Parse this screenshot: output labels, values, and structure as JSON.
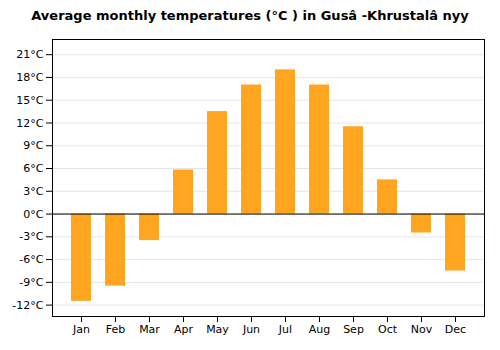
{
  "chart_data": {
    "type": "bar",
    "title": "Average monthly temperatures (°C ) in Gusâ -Khrustalâ nyy",
    "categories": [
      "Jan",
      "Feb",
      "Mar",
      "Apr",
      "May",
      "Jun",
      "Jul",
      "Aug",
      "Sep",
      "Oct",
      "Nov",
      "Dec"
    ],
    "values": [
      -11.5,
      -9.5,
      -3.5,
      5.8,
      13.5,
      17.0,
      19.0,
      17.0,
      11.5,
      4.5,
      -2.5,
      -7.5
    ],
    "color": "#FFA520",
    "ylim": [
      -13.5,
      23
    ],
    "yticks": [
      {
        "value": 21,
        "label": "21°C"
      },
      {
        "value": 18,
        "label": "18°C"
      },
      {
        "value": 15,
        "label": "15°C"
      },
      {
        "value": 12,
        "label": "12°C"
      },
      {
        "value": 9,
        "label": "9°C"
      },
      {
        "value": 6,
        "label": "6°C"
      },
      {
        "value": 3,
        "label": "3°C"
      },
      {
        "value": 0,
        "label": "0°C"
      },
      {
        "value": -3,
        "label": "-3°C"
      },
      {
        "value": -6,
        "label": "-6°C"
      },
      {
        "value": -9,
        "label": "-9°C"
      },
      {
        "value": -12,
        "label": "-12°C"
      }
    ],
    "grid": true
  }
}
